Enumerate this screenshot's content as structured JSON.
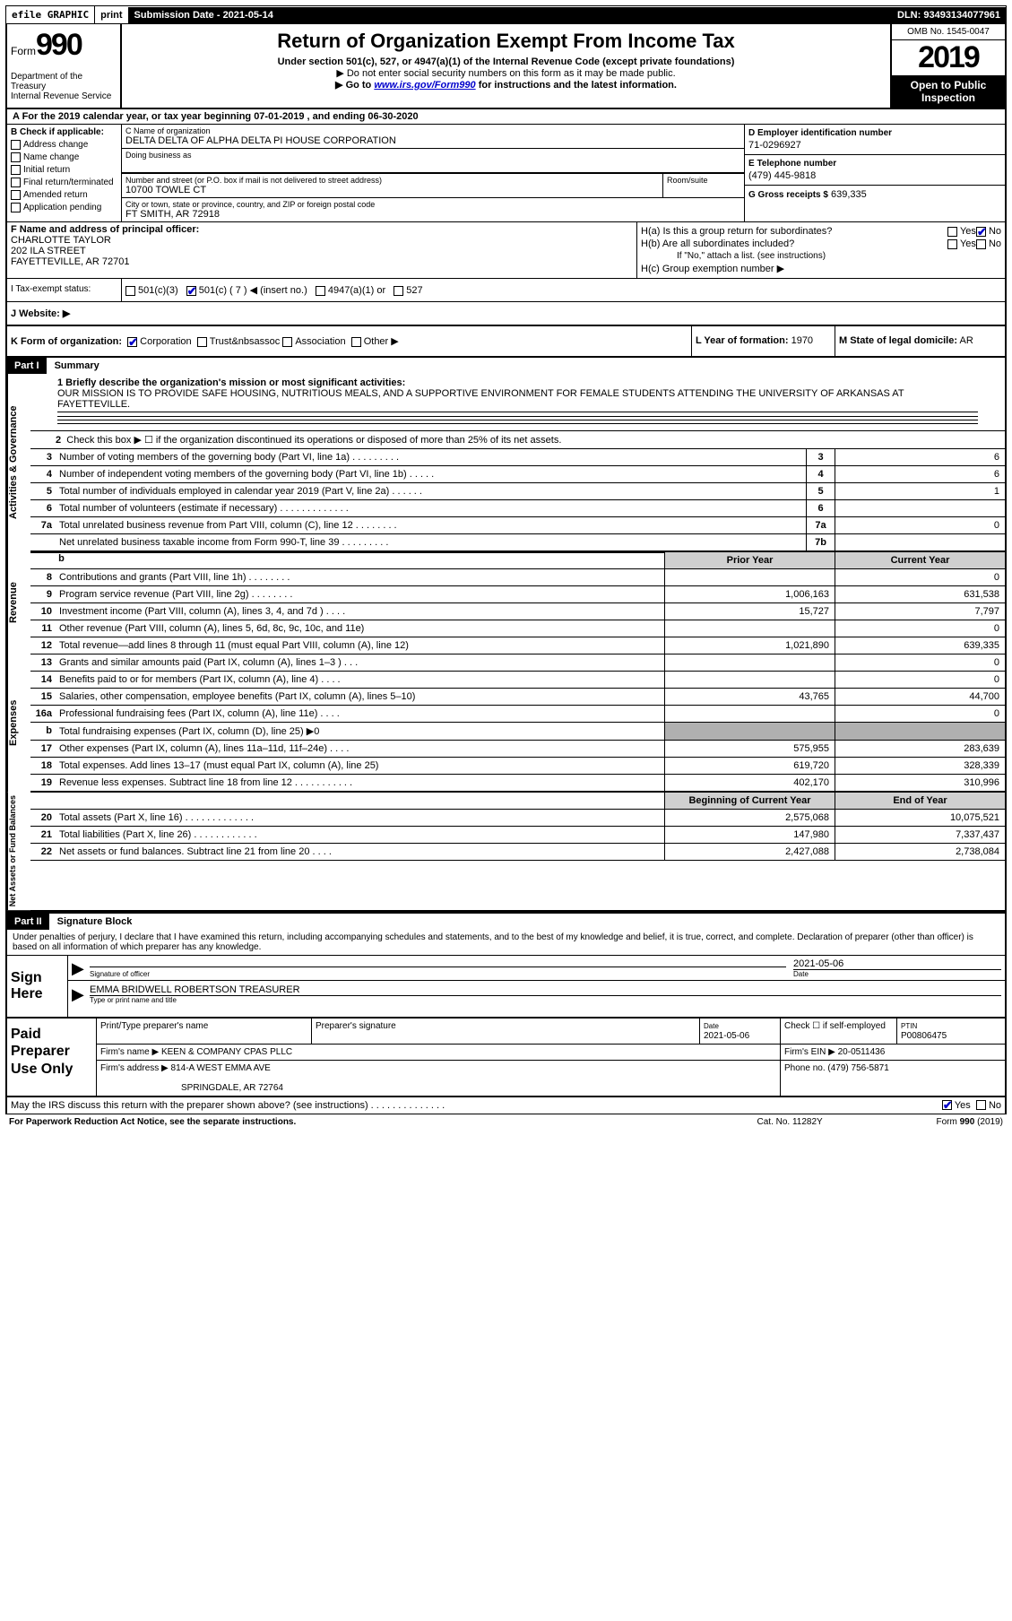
{
  "top": {
    "efile": "efile GRAPHIC",
    "print": "print",
    "submission": "Submission Date - 2021-05-14",
    "dln": "DLN: 93493134077961"
  },
  "header": {
    "form_label": "Form",
    "form_number": "990",
    "dept": "Department of the Treasury\nInternal Revenue Service",
    "title": "Return of Organization Exempt From Income Tax",
    "subtitle": "Under section 501(c), 527, or 4947(a)(1) of the Internal Revenue Code (except private foundations)",
    "note1": "▶ Do not enter social security numbers on this form as it may be made public.",
    "note2_prefix": "▶ Go to ",
    "note2_url": "www.irs.gov/Form990",
    "note2_suffix": " for instructions and the latest information.",
    "omb": "OMB No. 1545-0047",
    "year": "2019",
    "open_public": "Open to Public Inspection"
  },
  "period": {
    "text": "A For the 2019 calendar year, or tax year beginning 07-01-2019    , and ending 06-30-2020"
  },
  "sectionB": {
    "label": "B Check if applicable:",
    "items": [
      "Address change",
      "Name change",
      "Initial return",
      "Final return/terminated",
      "Amended return",
      "Application pending"
    ]
  },
  "sectionC": {
    "name_label": "C Name of organization",
    "name": "DELTA DELTA OF ALPHA DELTA PI HOUSE CORPORATION",
    "dba_label": "Doing business as",
    "addr_label": "Number and street (or P.O. box if mail is not delivered to street address)",
    "addr": "10700 TOWLE CT",
    "suite_label": "Room/suite",
    "city_label": "City or town, state or province, country, and ZIP or foreign postal code",
    "city": "FT SMITH, AR  72918"
  },
  "sectionD": {
    "label": "D Employer identification number",
    "value": "71-0296927"
  },
  "sectionE": {
    "label": "E Telephone number",
    "value": "(479) 445-9818"
  },
  "sectionG": {
    "label": "G Gross receipts $",
    "value": "639,335"
  },
  "sectionF": {
    "label": "F  Name and address of principal officer:",
    "name": "CHARLOTTE TAYLOR",
    "street": "202 ILA STREET",
    "city": "FAYETTEVILLE, AR  72701"
  },
  "sectionH": {
    "ha": "H(a)  Is this a group return for subordinates?",
    "hb": "H(b)  Are all subordinates included?",
    "hb_note": "If \"No,\" attach a list. (see instructions)",
    "hc": "H(c)  Group exemption number ▶",
    "yes": "Yes",
    "no": "No"
  },
  "sectionI": {
    "label": "I  Tax-exempt status:",
    "opt1": "501(c)(3)",
    "opt2": "501(c) ( 7 ) ◀ (insert no.)",
    "opt3": "4947(a)(1) or",
    "opt4": "527"
  },
  "sectionJ": {
    "label": "J  Website: ▶"
  },
  "sectionK": {
    "label": "K Form of organization:",
    "corp": "Corporation",
    "trust": "Trust",
    "assoc": "Association",
    "other": "Other ▶"
  },
  "sectionL": {
    "label": "L Year of formation:",
    "value": "1970"
  },
  "sectionM": {
    "label": "M State of legal domicile:",
    "value": "AR"
  },
  "part1": {
    "header": "Part I",
    "title": "Summary",
    "mission_label": "1  Briefly describe the organization's mission or most significant activities:",
    "mission": "OUR MISSION IS TO PROVIDE SAFE HOUSING, NUTRITIOUS MEALS, AND A SUPPORTIVE ENVIRONMENT FOR FEMALE STUDENTS ATTENDING THE UNIVERSITY OF ARKANSAS AT FAYETTEVILLE.",
    "side_ag": "Activities & Governance",
    "side_rev": "Revenue",
    "side_exp": "Expenses",
    "side_net": "Net Assets or Fund Balances",
    "line2": "Check this box ▶ ☐  if the organization discontinued its operations or disposed of more than 25% of its net assets.",
    "lines_ag": [
      {
        "n": "3",
        "d": "Number of voting members of the governing body (Part VI, line 1a)  .   .   .   .   .   .   .   .   .",
        "box": "3",
        "v": "6"
      },
      {
        "n": "4",
        "d": "Number of independent voting members of the governing body (Part VI, line 1b)  .   .   .   .   .",
        "box": "4",
        "v": "6"
      },
      {
        "n": "5",
        "d": "Total number of individuals employed in calendar year 2019 (Part V, line 2a)  .   .   .   .   .   .",
        "box": "5",
        "v": "1"
      },
      {
        "n": "6",
        "d": "Total number of volunteers (estimate if necessary)   .   .   .   .   .   .   .   .   .   .   .   .   .",
        "box": "6",
        "v": ""
      },
      {
        "n": "7a",
        "d": "Total unrelated business revenue from Part VIII, column (C), line 12   .   .   .   .   .   .   .   .",
        "box": "7a",
        "v": "0"
      },
      {
        "n": "",
        "d": "Net unrelated business taxable income from Form 990-T, line 39   .   .   .   .   .   .   .   .   .",
        "box": "7b",
        "v": ""
      }
    ],
    "col_prior": "Prior Year",
    "col_current": "Current Year",
    "col_begin": "Beginning of Current Year",
    "col_end": "End of Year",
    "lines_rev": [
      {
        "n": "8",
        "d": "Contributions and grants (Part VIII, line 1h)   .   .   .   .   .   .   .   .",
        "p": "",
        "c": "0"
      },
      {
        "n": "9",
        "d": "Program service revenue (Part VIII, line 2g)   .   .   .   .   .   .   .   .",
        "p": "1,006,163",
        "c": "631,538"
      },
      {
        "n": "10",
        "d": "Investment income (Part VIII, column (A), lines 3, 4, and 7d )   .   .   .   .",
        "p": "15,727",
        "c": "7,797"
      },
      {
        "n": "11",
        "d": "Other revenue (Part VIII, column (A), lines 5, 6d, 8c, 9c, 10c, and 11e)",
        "p": "",
        "c": "0"
      },
      {
        "n": "12",
        "d": "Total revenue—add lines 8 through 11 (must equal Part VIII, column (A), line 12)",
        "p": "1,021,890",
        "c": "639,335"
      }
    ],
    "lines_exp": [
      {
        "n": "13",
        "d": "Grants and similar amounts paid (Part IX, column (A), lines 1–3 )  .   .   .",
        "p": "",
        "c": "0"
      },
      {
        "n": "14",
        "d": "Benefits paid to or for members (Part IX, column (A), line 4)   .    .   .   .",
        "p": "",
        "c": "0"
      },
      {
        "n": "15",
        "d": "Salaries, other compensation, employee benefits (Part IX, column (A), lines 5–10)",
        "p": "43,765",
        "c": "44,700"
      },
      {
        "n": "16a",
        "d": "Professional fundraising fees (Part IX, column (A), line 11e)   .   .   .    .",
        "p": "",
        "c": "0"
      },
      {
        "n": "b",
        "d": "Total fundraising expenses (Part IX, column (D), line 25) ▶0",
        "p": "__shade__",
        "c": "__shade__"
      },
      {
        "n": "17",
        "d": "Other expenses (Part IX, column (A), lines 11a–11d, 11f–24e)   .   .   .   .",
        "p": "575,955",
        "c": "283,639"
      },
      {
        "n": "18",
        "d": "Total expenses. Add lines 13–17 (must equal Part IX, column (A), line 25)",
        "p": "619,720",
        "c": "328,339"
      },
      {
        "n": "19",
        "d": "Revenue less expenses. Subtract line 18 from line 12  .   .   .   .   .   .   .   .   .   .   .",
        "p": "402,170",
        "c": "310,996"
      }
    ],
    "lines_net": [
      {
        "n": "20",
        "d": "Total assets (Part X, line 16)  .   .   .   .   .   .   .   .   .   .   .   .   .",
        "p": "2,575,068",
        "c": "10,075,521"
      },
      {
        "n": "21",
        "d": "Total liabilities (Part X, line 26)  .   .   .   .   .   .   .   .   .   .   .   .",
        "p": "147,980",
        "c": "7,337,437"
      },
      {
        "n": "22",
        "d": "Net assets or fund balances. Subtract line 21 from line 20  .   .   .   .",
        "p": "2,427,088",
        "c": "2,738,084"
      }
    ]
  },
  "part2": {
    "header": "Part II",
    "title": "Signature Block",
    "declaration": "Under penalties of perjury, I declare that I have examined this return, including accompanying schedules and statements, and to the best of my knowledge and belief, it is true, correct, and complete. Declaration of preparer (other than officer) is based on all information of which preparer has any knowledge.",
    "sign_here": "Sign Here",
    "sig_label": "Signature of officer",
    "date_label": "Date",
    "sig_date": "2021-05-06",
    "name_title": "EMMA BRIDWELL ROBERTSON  TREASURER",
    "name_title_label": "Type or print name and title",
    "paid_label": "Paid Preparer Use Only",
    "prep_name_label": "Print/Type preparer's name",
    "prep_sig_label": "Preparer's signature",
    "prep_date_label": "Date",
    "prep_date": "2021-05-06",
    "self_emp": "Check ☐ if self-employed",
    "ptin_label": "PTIN",
    "ptin": "P00806475",
    "firm_name_label": "Firm's name   ▶",
    "firm_name": "KEEN & COMPANY CPAS PLLC",
    "firm_ein_label": "Firm's EIN ▶",
    "firm_ein": "20-0511436",
    "firm_addr_label": "Firm's address ▶",
    "firm_addr": "814-A WEST EMMA AVE",
    "firm_city": "SPRINGDALE, AR  72764",
    "phone_label": "Phone no.",
    "phone": "(479) 756-5871",
    "discuss": "May the IRS discuss this return with the preparer shown above? (see instructions)   .   .   .   .   .   .   .   .   .   .   .   .   .   .",
    "yes": "Yes",
    "no": "No"
  },
  "footer": {
    "paperwork": "For Paperwork Reduction Act Notice, see the separate instructions.",
    "cat": "Cat. No. 11282Y",
    "form": "Form 990 (2019)"
  }
}
